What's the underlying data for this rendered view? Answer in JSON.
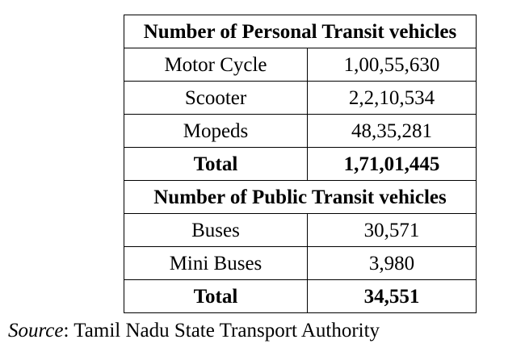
{
  "personal_transit": {
    "heading": "Number of Personal Transit vehicles",
    "rows": [
      {
        "label": "Motor Cycle",
        "value": "1,00,55,630"
      },
      {
        "label": "Scooter",
        "value": "2,2,10,534"
      },
      {
        "label": "Mopeds",
        "value": "48,35,281"
      }
    ],
    "total_label": "Total",
    "total_value": "1,71,01,445"
  },
  "public_transit": {
    "heading": "Number of Public Transit vehicles",
    "rows": [
      {
        "label": "Buses",
        "value": "30,571"
      },
      {
        "label": "Mini Buses",
        "value": "3,980"
      }
    ],
    "total_label": "Total",
    "total_value": "34,551"
  },
  "source": {
    "label": "Source",
    "separator": ":",
    "text": " Tamil Nadu State Transport Authority"
  }
}
